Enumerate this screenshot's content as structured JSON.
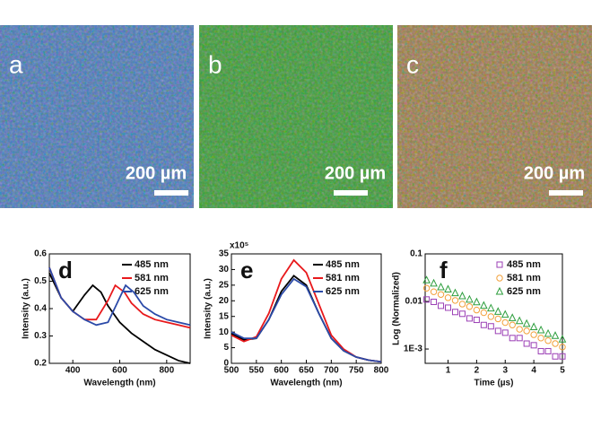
{
  "panels": [
    {
      "label": "a",
      "scale_bar": "200 µm"
    },
    {
      "label": "b",
      "scale_bar": "200 µm"
    },
    {
      "label": "c",
      "scale_bar": "200 µm"
    }
  ],
  "chart_data": [
    {
      "type": "line",
      "label": "d",
      "xlabel": "Wavelength (nm)",
      "ylabel": "Intensity (a.u.)",
      "xlim": [
        300,
        900
      ],
      "xticks": [
        400,
        600,
        800
      ],
      "ylim": [
        0.2,
        0.6
      ],
      "yticks": [
        0.2,
        0.3,
        0.4,
        0.5,
        0.6
      ],
      "series": [
        {
          "name": "485 nm",
          "color": "#000000",
          "x": [
            300,
            350,
            400,
            450,
            485,
            520,
            550,
            600,
            650,
            700,
            750,
            800,
            850,
            900
          ],
          "values": [
            0.53,
            0.44,
            0.39,
            0.45,
            0.485,
            0.46,
            0.41,
            0.35,
            0.31,
            0.28,
            0.25,
            0.23,
            0.21,
            0.2
          ]
        },
        {
          "name": "581 nm",
          "color": "#e8191c",
          "x": [
            300,
            350,
            400,
            450,
            500,
            550,
            581,
            620,
            650,
            700,
            750,
            800,
            850,
            900
          ],
          "values": [
            0.55,
            0.44,
            0.39,
            0.36,
            0.36,
            0.43,
            0.485,
            0.46,
            0.42,
            0.38,
            0.36,
            0.35,
            0.34,
            0.33
          ]
        },
        {
          "name": "625 nm",
          "color": "#2b4aa8",
          "x": [
            300,
            350,
            400,
            450,
            500,
            550,
            600,
            625,
            660,
            700,
            750,
            800,
            850,
            900
          ],
          "values": [
            0.55,
            0.44,
            0.39,
            0.36,
            0.34,
            0.35,
            0.44,
            0.485,
            0.46,
            0.41,
            0.38,
            0.36,
            0.35,
            0.34
          ]
        }
      ]
    },
    {
      "type": "line",
      "label": "e",
      "xlabel": "Wavelength (nm)",
      "ylabel": "Intensity (a.u.)",
      "scale_label": "x10⁵",
      "xlim": [
        500,
        800
      ],
      "xticks": [
        500,
        550,
        600,
        650,
        700,
        750,
        800
      ],
      "ylim": [
        0,
        35
      ],
      "yticks": [
        0,
        5,
        10,
        15,
        20,
        25,
        30,
        35
      ],
      "series": [
        {
          "name": "485 nm",
          "color": "#000000",
          "x": [
            500,
            525,
            550,
            575,
            600,
            625,
            650,
            675,
            700,
            725,
            750,
            775,
            800
          ],
          "values": [
            9.5,
            7.5,
            8,
            14,
            23,
            28,
            25,
            16,
            8,
            4,
            2,
            1,
            0.5
          ]
        },
        {
          "name": "581 nm",
          "color": "#e8191c",
          "x": [
            500,
            525,
            550,
            575,
            600,
            625,
            650,
            675,
            700,
            725,
            750,
            775,
            800
          ],
          "values": [
            9,
            7,
            8.5,
            16,
            27,
            33,
            29,
            19,
            9,
            4.5,
            2,
            1,
            0.5
          ]
        },
        {
          "name": "625 nm",
          "color": "#2b4aa8",
          "x": [
            500,
            525,
            550,
            575,
            600,
            625,
            650,
            675,
            700,
            725,
            750,
            775,
            800
          ],
          "values": [
            10,
            8,
            8,
            14,
            22,
            27,
            24.5,
            16,
            8,
            4,
            2,
            1,
            0.5
          ]
        }
      ]
    },
    {
      "type": "scatter",
      "label": "f",
      "xlabel": "Time (µs)",
      "ylabel": "Log (Normalized)",
      "log_y": true,
      "xlim": [
        0.2,
        5
      ],
      "xticks": [
        1,
        2,
        3,
        4,
        5
      ],
      "ylim": [
        0.0005,
        0.1
      ],
      "yticks": [
        {
          "value": 0.001,
          "label": "1E-3"
        },
        0.01,
        0.1
      ],
      "x": [
        0.25,
        0.5,
        0.75,
        1,
        1.25,
        1.5,
        1.75,
        2,
        2.25,
        2.5,
        2.75,
        3,
        3.25,
        3.5,
        3.75,
        4,
        4.25,
        4.5,
        4.75,
        5
      ],
      "series": [
        {
          "name": "485 nm",
          "color": "#9b3fb5",
          "marker": "square",
          "values": [
            0.011,
            0.0098,
            0.0081,
            0.0074,
            0.006,
            0.0055,
            0.0044,
            0.0041,
            0.0032,
            0.003,
            0.0024,
            0.0022,
            0.0017,
            0.0017,
            0.0013,
            0.0012,
            0.0009,
            0.0009,
            0.0007,
            0.0007
          ]
        },
        {
          "name": "581 nm",
          "color": "#f2a03a",
          "marker": "circle",
          "values": [
            0.019,
            0.016,
            0.014,
            0.012,
            0.0105,
            0.0088,
            0.0078,
            0.0066,
            0.0058,
            0.0048,
            0.0043,
            0.0036,
            0.0032,
            0.0026,
            0.0024,
            0.002,
            0.0017,
            0.0015,
            0.0013,
            0.0011
          ]
        },
        {
          "name": "625 nm",
          "color": "#2e9e3e",
          "marker": "triangle",
          "values": [
            0.028,
            0.024,
            0.02,
            0.018,
            0.015,
            0.013,
            0.011,
            0.0097,
            0.0082,
            0.0072,
            0.0061,
            0.0053,
            0.0045,
            0.0039,
            0.0034,
            0.0029,
            0.0025,
            0.0021,
            0.0019,
            0.0016
          ]
        }
      ]
    }
  ]
}
